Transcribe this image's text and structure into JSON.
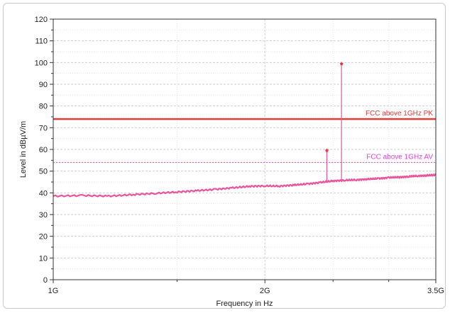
{
  "chart_data": {
    "type": "line",
    "xlabel": "Frequency in Hz",
    "ylabel": "Level in dBµV/m",
    "x_scale": "log",
    "xlim": [
      1000000000,
      3500000000
    ],
    "ylim": [
      0,
      120
    ],
    "x_ticks": [
      {
        "value": 1000000000,
        "label": "1G"
      },
      {
        "value": 2000000000,
        "label": "2G"
      },
      {
        "value": 3500000000,
        "label": "3.5G"
      }
    ],
    "y_ticks": [
      0,
      10,
      20,
      30,
      40,
      50,
      60,
      70,
      80,
      90,
      100,
      110,
      120
    ],
    "grid": true,
    "limit_lines": [
      {
        "name": "FCC above 1GHz PK",
        "value": 74,
        "color": "#e23b3b",
        "style": "solid"
      },
      {
        "name": "FCC above 1GHz AV",
        "value": 54,
        "color": "#e040e0",
        "style": "dashed"
      }
    ],
    "series": [
      {
        "color": "#e8559a",
        "x": [
          1000000000,
          1100000000,
          1200000000,
          1300000000,
          1400000000,
          1500000000,
          1600000000,
          1700000000,
          1800000000,
          1900000000,
          2000000000,
          2100000000,
          2200000000,
          2300000000,
          2400000000,
          2500000000,
          2600000000,
          2700000000,
          2800000000,
          2900000000,
          3000000000,
          3100000000,
          3200000000,
          3300000000,
          3400000000,
          3500000000
        ],
        "values": [
          38.5,
          38.8,
          38.5,
          39.2,
          39.8,
          40.4,
          41,
          41.6,
          42.3,
          43,
          43.2,
          43.1,
          43.6,
          44.1,
          44.8,
          45.5,
          45.8,
          46,
          46.3,
          46.6,
          47,
          47.2,
          47.5,
          47.8,
          48,
          48.2
        ]
      }
    ],
    "peaks": [
      {
        "x": 2450000000,
        "value": 59
      },
      {
        "x": 2570000000,
        "value": 99
      }
    ]
  }
}
